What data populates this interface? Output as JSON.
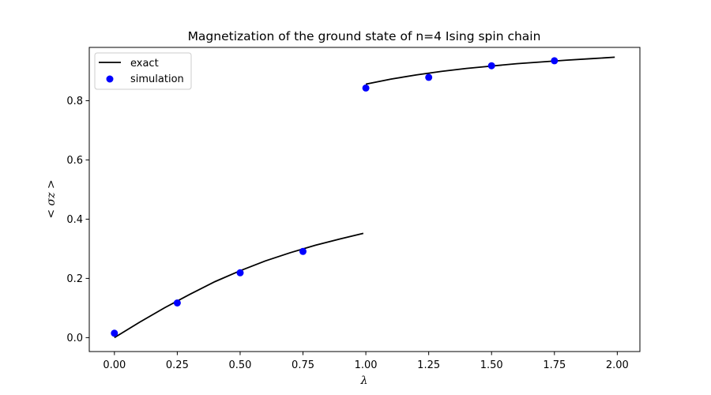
{
  "chart_data": {
    "type": "line",
    "title": "Magnetization of the ground state of n=4 Ising spin chain",
    "xlabel": "λ",
    "ylabel": "< σz >",
    "xlim": [
      -0.1,
      2.09
    ],
    "ylim": [
      -0.047,
      0.98
    ],
    "x_ticks": [
      0.0,
      0.25,
      0.5,
      0.75,
      1.0,
      1.25,
      1.5,
      1.75,
      2.0
    ],
    "x_tick_labels": [
      "0.00",
      "0.25",
      "0.50",
      "0.75",
      "1.00",
      "1.25",
      "1.50",
      "1.75",
      "2.00"
    ],
    "y_ticks": [
      0.0,
      0.2,
      0.4,
      0.6,
      0.8
    ],
    "y_tick_labels": [
      "0.0",
      "0.2",
      "0.4",
      "0.6",
      "0.8"
    ],
    "grid": false,
    "legend_position": "top-left",
    "series": [
      {
        "name": "exact",
        "style": "line",
        "color": "#000000",
        "segments": [
          {
            "x": [
              0.0,
              0.1,
              0.2,
              0.3,
              0.4,
              0.5,
              0.6,
              0.7,
              0.8,
              0.9,
              0.99
            ],
            "y": [
              0.0,
              0.052,
              0.101,
              0.146,
              0.189,
              0.226,
              0.259,
              0.287,
              0.312,
              0.334,
              0.352
            ]
          },
          {
            "x": [
              1.0,
              1.1,
              1.2,
              1.3,
              1.4,
              1.5,
              1.6,
              1.7,
              1.8,
              1.9,
              1.99
            ],
            "y": [
              0.856,
              0.873,
              0.887,
              0.899,
              0.909,
              0.917,
              0.925,
              0.931,
              0.937,
              0.942,
              0.947
            ]
          }
        ]
      },
      {
        "name": "simulation",
        "style": "scatter",
        "color": "#0000ff",
        "x": [
          0.0,
          0.25,
          0.5,
          0.75,
          1.0,
          1.25,
          1.5,
          1.75
        ],
        "y": [
          0.015,
          0.117,
          0.219,
          0.291,
          0.843,
          0.879,
          0.918,
          0.935
        ]
      }
    ]
  }
}
